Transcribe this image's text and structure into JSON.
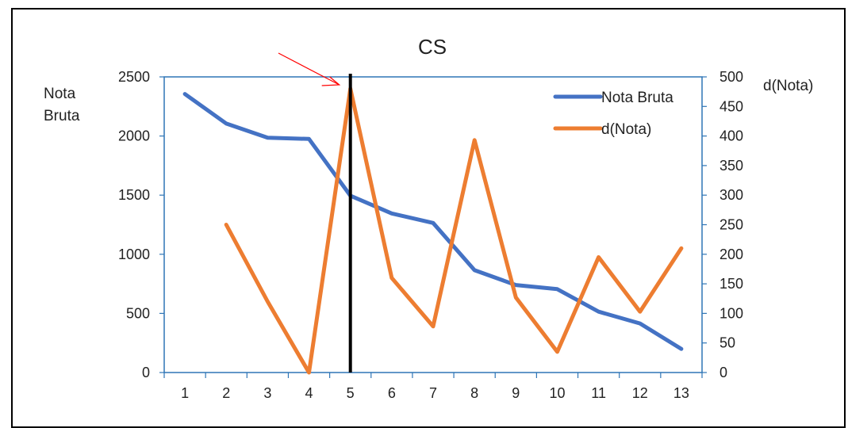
{
  "chart_data": {
    "type": "line",
    "title": "CS",
    "xlabel": "",
    "categories": [
      1,
      2,
      3,
      4,
      5,
      6,
      7,
      8,
      9,
      10,
      11,
      12,
      13
    ],
    "y_left": {
      "label_lines": [
        "Nota",
        "Bruta"
      ],
      "ylim": [
        0,
        2500
      ],
      "ticks": [
        0,
        500,
        1000,
        1500,
        2000,
        2500
      ]
    },
    "y_right": {
      "label": "d(Nota)",
      "ylim": [
        0,
        500
      ],
      "ticks": [
        0,
        50,
        100,
        150,
        200,
        250,
        300,
        350,
        400,
        450,
        500
      ]
    },
    "series": [
      {
        "name": "Nota Bruta",
        "axis": "left",
        "color": "#4472C4",
        "values": [
          2355,
          2105,
          1985,
          1975,
          1495,
          1345,
          1265,
          865,
          740,
          705,
          515,
          415,
          200
        ]
      },
      {
        "name": "d(Nota)",
        "axis": "right",
        "color": "#ED7D31",
        "values": [
          null,
          250,
          120,
          0,
          480,
          160,
          78,
          393,
          127,
          35,
          195,
          103,
          210
        ]
      }
    ],
    "vertical_marker": {
      "category": 5,
      "color": "#000000"
    },
    "annotation_arrow_color": "#FF0000",
    "legend_position": "top-right",
    "grid": false
  }
}
